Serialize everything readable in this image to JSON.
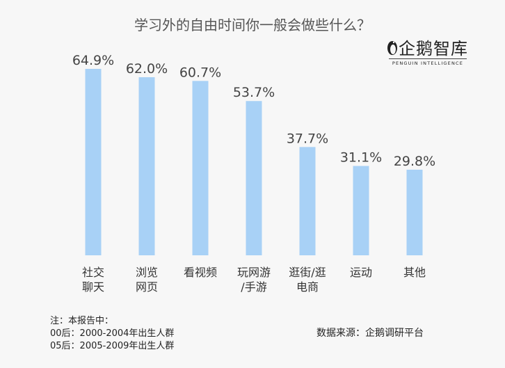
{
  "title": "学习外的自由时间你一般会做些什么？",
  "logo": {
    "name": "企鹅智库",
    "subtitle": "PENGUIN INTELLIGENCE"
  },
  "chart_data": {
    "type": "bar",
    "categories": [
      [
        "社交",
        "聊天"
      ],
      [
        "浏览",
        "网页"
      ],
      [
        "看视频"
      ],
      [
        "玩网游",
        "/手游"
      ],
      [
        "逛街/逛",
        "电商"
      ],
      [
        "运动"
      ],
      [
        "其他"
      ]
    ],
    "values": [
      64.9,
      62.0,
      60.7,
      53.7,
      37.7,
      31.1,
      29.8
    ],
    "value_labels": [
      "64.9%",
      "62.0%",
      "60.7%",
      "53.7%",
      "37.7%",
      "31.1%",
      "29.8%"
    ],
    "unit": "%",
    "ylim": [
      0,
      64.9
    ],
    "grid": false,
    "legend": "none",
    "bar_color": "#a8d1f6"
  },
  "note": {
    "line1": "注：本报告中：",
    "line2": "00后：2000-2004年出生人群",
    "line3": "05后：2005-2009年出生人群"
  },
  "source": "数据来源：企鹅调研平台"
}
